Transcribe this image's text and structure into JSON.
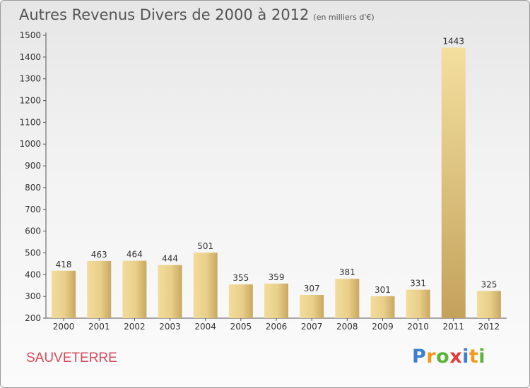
{
  "header": {
    "title": "Autres Revenus Divers de 2000 à 2012",
    "subtitle": "(en milliers d'€)"
  },
  "commune": "SAUVETERRE",
  "logo": {
    "letters": [
      {
        "ch": "P",
        "color": "#3a7fd1"
      },
      {
        "ch": "r",
        "color": "#f39a1e"
      },
      {
        "ch": "o",
        "color": "#5ab43a"
      },
      {
        "ch": "x",
        "color": "#e23b3b"
      },
      {
        "ch": "i",
        "color": "#3a7fd1"
      },
      {
        "ch": "t",
        "color": "#f39a1e"
      },
      {
        "ch": "i",
        "color": "#5ab43a"
      }
    ]
  },
  "chart_data": {
    "type": "bar",
    "categories": [
      "2000",
      "2001",
      "2002",
      "2003",
      "2004",
      "2005",
      "2006",
      "2007",
      "2008",
      "2009",
      "2010",
      "2011",
      "2012"
    ],
    "values": [
      418,
      463,
      464,
      444,
      501,
      355,
      359,
      307,
      381,
      301,
      331,
      1443,
      325
    ],
    "title": "Autres Revenus Divers de 2000 à 2012",
    "xlabel": "",
    "ylabel": "",
    "ylim": [
      200,
      1500
    ],
    "yticks": [
      200,
      300,
      400,
      500,
      600,
      700,
      800,
      900,
      1000,
      1100,
      1200,
      1300,
      1400,
      1500
    ],
    "grid": false,
    "bar_color": "#e3c57d"
  }
}
